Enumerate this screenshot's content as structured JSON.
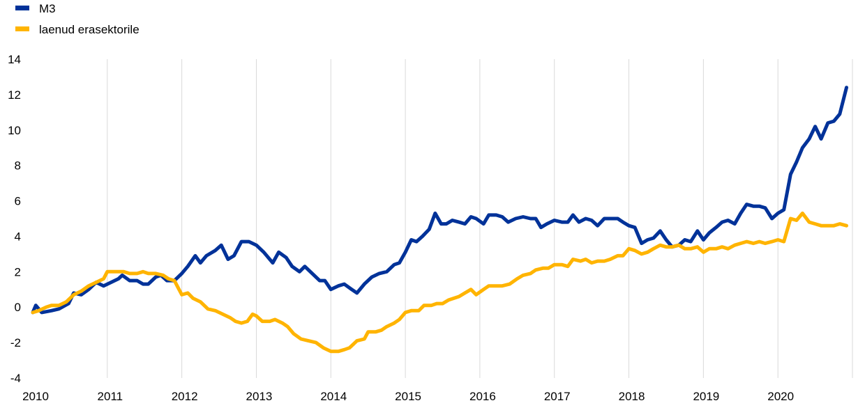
{
  "chart_data": {
    "type": "line",
    "title": "",
    "xlabel": "",
    "ylabel": "",
    "ylim": [
      -4,
      14
    ],
    "xlim": [
      2010,
      2021
    ],
    "yticks": [
      -4,
      -2,
      0,
      2,
      4,
      6,
      8,
      10,
      12,
      14
    ],
    "ytick_labels": [
      "-4",
      "-2",
      "0",
      "2",
      "4",
      "6",
      "8",
      "10",
      "12",
      "14"
    ],
    "xticks": [
      2010,
      2011,
      2012,
      2013,
      2014,
      2015,
      2016,
      2017,
      2018,
      2019,
      2020
    ],
    "xtick_labels": [
      "2010",
      "2011",
      "2012",
      "2013",
      "2014",
      "2015",
      "2016",
      "2017",
      "2018",
      "2019",
      "2020"
    ],
    "grid": "vertical",
    "legend_position": "top-left",
    "series": [
      {
        "name": "M3",
        "color": "#003299",
        "points": [
          [
            2010.0,
            -0.3
          ],
          [
            2010.04,
            0.1
          ],
          [
            2010.12,
            -0.3
          ],
          [
            2010.25,
            -0.2
          ],
          [
            2010.35,
            -0.1
          ],
          [
            2010.48,
            0.2
          ],
          [
            2010.55,
            0.8
          ],
          [
            2010.65,
            0.7
          ],
          [
            2010.75,
            1.0
          ],
          [
            2010.85,
            1.4
          ],
          [
            2010.95,
            1.2
          ],
          [
            2011.05,
            1.4
          ],
          [
            2011.15,
            1.6
          ],
          [
            2011.2,
            1.8
          ],
          [
            2011.3,
            1.5
          ],
          [
            2011.4,
            1.5
          ],
          [
            2011.48,
            1.3
          ],
          [
            2011.55,
            1.3
          ],
          [
            2011.65,
            1.7
          ],
          [
            2011.72,
            1.8
          ],
          [
            2011.8,
            1.5
          ],
          [
            2011.9,
            1.5
          ],
          [
            2012.0,
            1.9
          ],
          [
            2012.08,
            2.3
          ],
          [
            2012.18,
            2.9
          ],
          [
            2012.25,
            2.5
          ],
          [
            2012.33,
            2.9
          ],
          [
            2012.45,
            3.2
          ],
          [
            2012.53,
            3.5
          ],
          [
            2012.62,
            2.7
          ],
          [
            2012.7,
            2.9
          ],
          [
            2012.8,
            3.7
          ],
          [
            2012.9,
            3.7
          ],
          [
            2013.0,
            3.5
          ],
          [
            2013.1,
            3.1
          ],
          [
            2013.22,
            2.5
          ],
          [
            2013.3,
            3.1
          ],
          [
            2013.4,
            2.8
          ],
          [
            2013.48,
            2.3
          ],
          [
            2013.58,
            2.0
          ],
          [
            2013.65,
            2.3
          ],
          [
            2013.75,
            1.9
          ],
          [
            2013.85,
            1.5
          ],
          [
            2013.92,
            1.5
          ],
          [
            2014.0,
            1.0
          ],
          [
            2014.1,
            1.2
          ],
          [
            2014.18,
            1.3
          ],
          [
            2014.28,
            1.0
          ],
          [
            2014.35,
            0.8
          ],
          [
            2014.45,
            1.3
          ],
          [
            2014.55,
            1.7
          ],
          [
            2014.65,
            1.9
          ],
          [
            2014.75,
            2.0
          ],
          [
            2014.85,
            2.4
          ],
          [
            2014.92,
            2.5
          ],
          [
            2015.0,
            3.1
          ],
          [
            2015.08,
            3.8
          ],
          [
            2015.15,
            3.7
          ],
          [
            2015.23,
            4.0
          ],
          [
            2015.32,
            4.4
          ],
          [
            2015.4,
            5.3
          ],
          [
            2015.48,
            4.7
          ],
          [
            2015.55,
            4.7
          ],
          [
            2015.63,
            4.9
          ],
          [
            2015.72,
            4.8
          ],
          [
            2015.8,
            4.7
          ],
          [
            2015.88,
            5.1
          ],
          [
            2015.95,
            5.0
          ],
          [
            2016.05,
            4.7
          ],
          [
            2016.12,
            5.2
          ],
          [
            2016.22,
            5.2
          ],
          [
            2016.3,
            5.1
          ],
          [
            2016.38,
            4.8
          ],
          [
            2016.48,
            5.0
          ],
          [
            2016.58,
            5.1
          ],
          [
            2016.68,
            5.0
          ],
          [
            2016.75,
            5.0
          ],
          [
            2016.82,
            4.5
          ],
          [
            2016.9,
            4.7
          ],
          [
            2017.0,
            4.9
          ],
          [
            2017.1,
            4.8
          ],
          [
            2017.18,
            4.8
          ],
          [
            2017.25,
            5.2
          ],
          [
            2017.33,
            4.8
          ],
          [
            2017.42,
            5.0
          ],
          [
            2017.5,
            4.9
          ],
          [
            2017.58,
            4.6
          ],
          [
            2017.67,
            5.0
          ],
          [
            2017.75,
            5.0
          ],
          [
            2017.85,
            5.0
          ],
          [
            2017.92,
            4.8
          ],
          [
            2018.0,
            4.6
          ],
          [
            2018.08,
            4.5
          ],
          [
            2018.17,
            3.6
          ],
          [
            2018.25,
            3.8
          ],
          [
            2018.33,
            3.9
          ],
          [
            2018.42,
            4.3
          ],
          [
            2018.5,
            3.8
          ],
          [
            2018.58,
            3.4
          ],
          [
            2018.67,
            3.5
          ],
          [
            2018.75,
            3.8
          ],
          [
            2018.83,
            3.7
          ],
          [
            2018.92,
            4.3
          ],
          [
            2019.0,
            3.8
          ],
          [
            2019.08,
            4.2
          ],
          [
            2019.17,
            4.5
          ],
          [
            2019.25,
            4.8
          ],
          [
            2019.33,
            4.9
          ],
          [
            2019.42,
            4.7
          ],
          [
            2019.5,
            5.3
          ],
          [
            2019.58,
            5.8
          ],
          [
            2019.67,
            5.7
          ],
          [
            2019.75,
            5.7
          ],
          [
            2019.83,
            5.6
          ],
          [
            2019.92,
            5.0
          ],
          [
            2020.0,
            5.3
          ],
          [
            2020.08,
            5.5
          ],
          [
            2020.17,
            7.5
          ],
          [
            2020.25,
            8.2
          ],
          [
            2020.33,
            9.0
          ],
          [
            2020.42,
            9.5
          ],
          [
            2020.5,
            10.2
          ],
          [
            2020.58,
            9.5
          ],
          [
            2020.67,
            10.4
          ],
          [
            2020.75,
            10.5
          ],
          [
            2020.83,
            10.9
          ],
          [
            2020.92,
            12.4
          ]
        ]
      },
      {
        "name": "laenud erasektorile",
        "color": "#FFB400",
        "points": [
          [
            2010.0,
            -0.3
          ],
          [
            2010.08,
            -0.2
          ],
          [
            2010.18,
            0.0
          ],
          [
            2010.25,
            0.1
          ],
          [
            2010.35,
            0.1
          ],
          [
            2010.45,
            0.3
          ],
          [
            2010.55,
            0.7
          ],
          [
            2010.65,
            0.9
          ],
          [
            2010.75,
            1.2
          ],
          [
            2010.85,
            1.4
          ],
          [
            2010.95,
            1.6
          ],
          [
            2011.0,
            2.0
          ],
          [
            2011.1,
            2.0
          ],
          [
            2011.22,
            2.0
          ],
          [
            2011.3,
            1.9
          ],
          [
            2011.4,
            1.9
          ],
          [
            2011.48,
            2.0
          ],
          [
            2011.55,
            1.9
          ],
          [
            2011.65,
            1.9
          ],
          [
            2011.75,
            1.8
          ],
          [
            2011.82,
            1.6
          ],
          [
            2011.9,
            1.5
          ],
          [
            2012.0,
            0.7
          ],
          [
            2012.08,
            0.8
          ],
          [
            2012.15,
            0.5
          ],
          [
            2012.25,
            0.3
          ],
          [
            2012.35,
            -0.1
          ],
          [
            2012.45,
            -0.2
          ],
          [
            2012.55,
            -0.4
          ],
          [
            2012.65,
            -0.6
          ],
          [
            2012.72,
            -0.8
          ],
          [
            2012.8,
            -0.9
          ],
          [
            2012.88,
            -0.8
          ],
          [
            2012.95,
            -0.4
          ],
          [
            2013.0,
            -0.5
          ],
          [
            2013.08,
            -0.8
          ],
          [
            2013.18,
            -0.8
          ],
          [
            2013.25,
            -0.7
          ],
          [
            2013.35,
            -0.9
          ],
          [
            2013.42,
            -1.1
          ],
          [
            2013.5,
            -1.5
          ],
          [
            2013.6,
            -1.8
          ],
          [
            2013.7,
            -1.9
          ],
          [
            2013.8,
            -2.0
          ],
          [
            2013.9,
            -2.3
          ],
          [
            2014.0,
            -2.5
          ],
          [
            2014.1,
            -2.5
          ],
          [
            2014.18,
            -2.4
          ],
          [
            2014.25,
            -2.3
          ],
          [
            2014.35,
            -1.9
          ],
          [
            2014.45,
            -1.8
          ],
          [
            2014.5,
            -1.4
          ],
          [
            2014.6,
            -1.4
          ],
          [
            2014.68,
            -1.3
          ],
          [
            2014.75,
            -1.1
          ],
          [
            2014.85,
            -0.9
          ],
          [
            2014.92,
            -0.7
          ],
          [
            2015.0,
            -0.3
          ],
          [
            2015.08,
            -0.2
          ],
          [
            2015.18,
            -0.2
          ],
          [
            2015.25,
            0.1
          ],
          [
            2015.35,
            0.1
          ],
          [
            2015.42,
            0.2
          ],
          [
            2015.5,
            0.2
          ],
          [
            2015.58,
            0.4
          ],
          [
            2015.65,
            0.5
          ],
          [
            2015.72,
            0.6
          ],
          [
            2015.8,
            0.8
          ],
          [
            2015.88,
            1.0
          ],
          [
            2015.95,
            0.7
          ],
          [
            2016.05,
            1.0
          ],
          [
            2016.12,
            1.2
          ],
          [
            2016.22,
            1.2
          ],
          [
            2016.3,
            1.2
          ],
          [
            2016.4,
            1.3
          ],
          [
            2016.5,
            1.6
          ],
          [
            2016.58,
            1.8
          ],
          [
            2016.68,
            1.9
          ],
          [
            2016.75,
            2.1
          ],
          [
            2016.85,
            2.2
          ],
          [
            2016.92,
            2.2
          ],
          [
            2017.0,
            2.4
          ],
          [
            2017.1,
            2.4
          ],
          [
            2017.18,
            2.3
          ],
          [
            2017.25,
            2.7
          ],
          [
            2017.35,
            2.6
          ],
          [
            2017.42,
            2.7
          ],
          [
            2017.5,
            2.5
          ],
          [
            2017.58,
            2.6
          ],
          [
            2017.67,
            2.6
          ],
          [
            2017.75,
            2.7
          ],
          [
            2017.85,
            2.9
          ],
          [
            2017.92,
            2.9
          ],
          [
            2018.0,
            3.3
          ],
          [
            2018.08,
            3.2
          ],
          [
            2018.17,
            3.0
          ],
          [
            2018.25,
            3.1
          ],
          [
            2018.33,
            3.3
          ],
          [
            2018.42,
            3.5
          ],
          [
            2018.5,
            3.4
          ],
          [
            2018.58,
            3.4
          ],
          [
            2018.67,
            3.5
          ],
          [
            2018.75,
            3.3
          ],
          [
            2018.83,
            3.3
          ],
          [
            2018.92,
            3.4
          ],
          [
            2019.0,
            3.1
          ],
          [
            2019.08,
            3.3
          ],
          [
            2019.17,
            3.3
          ],
          [
            2019.25,
            3.4
          ],
          [
            2019.33,
            3.3
          ],
          [
            2019.42,
            3.5
          ],
          [
            2019.5,
            3.6
          ],
          [
            2019.58,
            3.7
          ],
          [
            2019.67,
            3.6
          ],
          [
            2019.75,
            3.7
          ],
          [
            2019.83,
            3.6
          ],
          [
            2019.92,
            3.7
          ],
          [
            2020.0,
            3.8
          ],
          [
            2020.08,
            3.7
          ],
          [
            2020.17,
            5.0
          ],
          [
            2020.25,
            4.9
          ],
          [
            2020.33,
            5.3
          ],
          [
            2020.42,
            4.8
          ],
          [
            2020.5,
            4.7
          ],
          [
            2020.58,
            4.6
          ],
          [
            2020.67,
            4.6
          ],
          [
            2020.75,
            4.6
          ],
          [
            2020.83,
            4.7
          ],
          [
            2020.92,
            4.6
          ]
        ]
      }
    ]
  }
}
